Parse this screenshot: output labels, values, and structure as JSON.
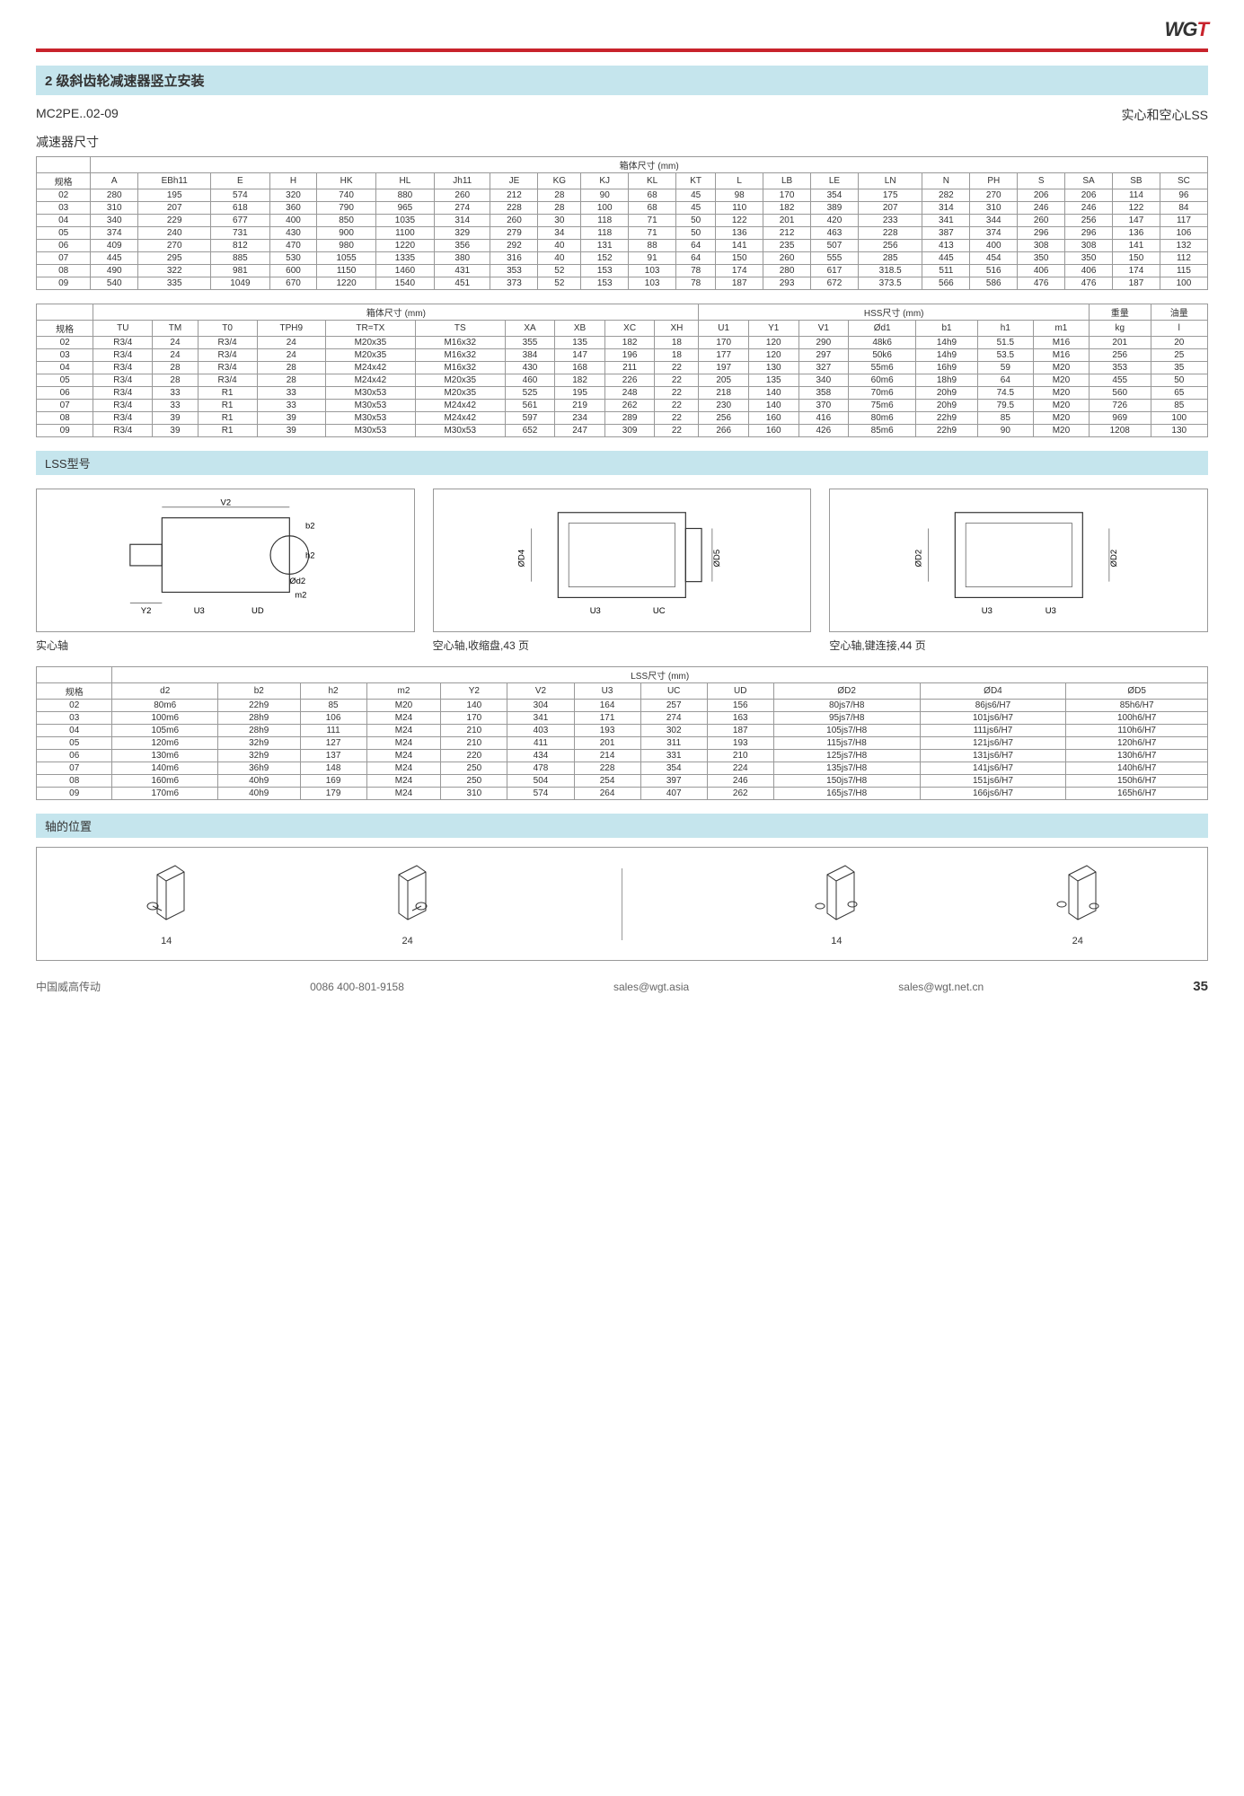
{
  "logo_black": "WG",
  "logo_red": "T",
  "title": "2 级斜齿轮减速器竖立安装",
  "model": "MC2PE..02-09",
  "subtitle_right": "实心和空心LSS",
  "section1_label": "减速器尺寸",
  "table1": {
    "header_span": "箱体尺寸 (mm)",
    "cols": [
      "规格",
      "A",
      "EBh11",
      "E",
      "H",
      "HK",
      "HL",
      "Jh11",
      "JE",
      "KG",
      "KJ",
      "KL",
      "KT",
      "L",
      "LB",
      "LE",
      "LN",
      "N",
      "PH",
      "S",
      "SA",
      "SB",
      "SC"
    ],
    "rows": [
      [
        "02",
        "280",
        "195",
        "574",
        "320",
        "740",
        "880",
        "260",
        "212",
        "28",
        "90",
        "68",
        "45",
        "98",
        "170",
        "354",
        "175",
        "282",
        "270",
        "206",
        "206",
        "114",
        "96"
      ],
      [
        "03",
        "310",
        "207",
        "618",
        "360",
        "790",
        "965",
        "274",
        "228",
        "28",
        "100",
        "68",
        "45",
        "110",
        "182",
        "389",
        "207",
        "314",
        "310",
        "246",
        "246",
        "122",
        "84"
      ],
      [
        "04",
        "340",
        "229",
        "677",
        "400",
        "850",
        "1035",
        "314",
        "260",
        "30",
        "118",
        "71",
        "50",
        "122",
        "201",
        "420",
        "233",
        "341",
        "344",
        "260",
        "256",
        "147",
        "117"
      ],
      [
        "05",
        "374",
        "240",
        "731",
        "430",
        "900",
        "1100",
        "329",
        "279",
        "34",
        "118",
        "71",
        "50",
        "136",
        "212",
        "463",
        "228",
        "387",
        "374",
        "296",
        "296",
        "136",
        "106"
      ],
      [
        "06",
        "409",
        "270",
        "812",
        "470",
        "980",
        "1220",
        "356",
        "292",
        "40",
        "131",
        "88",
        "64",
        "141",
        "235",
        "507",
        "256",
        "413",
        "400",
        "308",
        "308",
        "141",
        "132"
      ],
      [
        "07",
        "445",
        "295",
        "885",
        "530",
        "1055",
        "1335",
        "380",
        "316",
        "40",
        "152",
        "91",
        "64",
        "150",
        "260",
        "555",
        "285",
        "445",
        "454",
        "350",
        "350",
        "150",
        "112"
      ],
      [
        "08",
        "490",
        "322",
        "981",
        "600",
        "1150",
        "1460",
        "431",
        "353",
        "52",
        "153",
        "103",
        "78",
        "174",
        "280",
        "617",
        "318.5",
        "511",
        "516",
        "406",
        "406",
        "174",
        "115"
      ],
      [
        "09",
        "540",
        "335",
        "1049",
        "670",
        "1220",
        "1540",
        "451",
        "373",
        "52",
        "153",
        "103",
        "78",
        "187",
        "293",
        "672",
        "373.5",
        "566",
        "586",
        "476",
        "476",
        "187",
        "100"
      ]
    ]
  },
  "table2": {
    "header_left": "箱体尺寸 (mm)",
    "header_right": "HSS尺寸 (mm)",
    "header_weight": "重量",
    "header_oil": "油量",
    "cols": [
      "规格",
      "TU",
      "TM",
      "T0",
      "TPH9",
      "TR=TX",
      "TS",
      "XA",
      "XB",
      "XC",
      "XH",
      "U1",
      "Y1",
      "V1",
      "Ød1",
      "b1",
      "h1",
      "m1",
      "kg",
      "l"
    ],
    "rows": [
      [
        "02",
        "R3/4",
        "24",
        "R3/4",
        "24",
        "M20x35",
        "M16x32",
        "355",
        "135",
        "182",
        "18",
        "170",
        "120",
        "290",
        "48k6",
        "14h9",
        "51.5",
        "M16",
        "201",
        "20"
      ],
      [
        "03",
        "R3/4",
        "24",
        "R3/4",
        "24",
        "M20x35",
        "M16x32",
        "384",
        "147",
        "196",
        "18",
        "177",
        "120",
        "297",
        "50k6",
        "14h9",
        "53.5",
        "M16",
        "256",
        "25"
      ],
      [
        "04",
        "R3/4",
        "28",
        "R3/4",
        "28",
        "M24x42",
        "M16x32",
        "430",
        "168",
        "211",
        "22",
        "197",
        "130",
        "327",
        "55m6",
        "16h9",
        "59",
        "M20",
        "353",
        "35"
      ],
      [
        "05",
        "R3/4",
        "28",
        "R3/4",
        "28",
        "M24x42",
        "M20x35",
        "460",
        "182",
        "226",
        "22",
        "205",
        "135",
        "340",
        "60m6",
        "18h9",
        "64",
        "M20",
        "455",
        "50"
      ],
      [
        "06",
        "R3/4",
        "33",
        "R1",
        "33",
        "M30x53",
        "M20x35",
        "525",
        "195",
        "248",
        "22",
        "218",
        "140",
        "358",
        "70m6",
        "20h9",
        "74.5",
        "M20",
        "560",
        "65"
      ],
      [
        "07",
        "R3/4",
        "33",
        "R1",
        "33",
        "M30x53",
        "M24x42",
        "561",
        "219",
        "262",
        "22",
        "230",
        "140",
        "370",
        "75m6",
        "20h9",
        "79.5",
        "M20",
        "726",
        "85"
      ],
      [
        "08",
        "R3/4",
        "39",
        "R1",
        "39",
        "M30x53",
        "M24x42",
        "597",
        "234",
        "289",
        "22",
        "256",
        "160",
        "416",
        "80m6",
        "22h9",
        "85",
        "M20",
        "969",
        "100"
      ],
      [
        "09",
        "R3/4",
        "39",
        "R1",
        "39",
        "M30x53",
        "M30x53",
        "652",
        "247",
        "309",
        "22",
        "266",
        "160",
        "426",
        "85m6",
        "22h9",
        "90",
        "M20",
        "1208",
        "130"
      ]
    ]
  },
  "lss_section": "LSS型号",
  "diag1_caption": "实心轴",
  "diag2_caption": "空心轴,收缩盘,43 页",
  "diag3_caption": "空心轴,键连接,44 页",
  "table3": {
    "header_span": "LSS尺寸 (mm)",
    "cols": [
      "规格",
      "d2",
      "b2",
      "h2",
      "m2",
      "Y2",
      "V2",
      "U3",
      "UC",
      "UD",
      "ØD2",
      "ØD4",
      "ØD5"
    ],
    "rows": [
      [
        "02",
        "80m6",
        "22h9",
        "85",
        "M20",
        "140",
        "304",
        "164",
        "257",
        "156",
        "80js7/H8",
        "86js6/H7",
        "85h6/H7"
      ],
      [
        "03",
        "100m6",
        "28h9",
        "106",
        "M24",
        "170",
        "341",
        "171",
        "274",
        "163",
        "95js7/H8",
        "101js6/H7",
        "100h6/H7"
      ],
      [
        "04",
        "105m6",
        "28h9",
        "111",
        "M24",
        "210",
        "403",
        "193",
        "302",
        "187",
        "105js7/H8",
        "111js6/H7",
        "110h6/H7"
      ],
      [
        "05",
        "120m6",
        "32h9",
        "127",
        "M24",
        "210",
        "411",
        "201",
        "311",
        "193",
        "115js7/H8",
        "121js6/H7",
        "120h6/H7"
      ],
      [
        "06",
        "130m6",
        "32h9",
        "137",
        "M24",
        "220",
        "434",
        "214",
        "331",
        "210",
        "125js7/H8",
        "131js6/H7",
        "130h6/H7"
      ],
      [
        "07",
        "140m6",
        "36h9",
        "148",
        "M24",
        "250",
        "478",
        "228",
        "354",
        "224",
        "135js7/H8",
        "141js6/H7",
        "140h6/H7"
      ],
      [
        "08",
        "160m6",
        "40h9",
        "169",
        "M24",
        "250",
        "504",
        "254",
        "397",
        "246",
        "150js7/H8",
        "151js6/H7",
        "150h6/H7"
      ],
      [
        "09",
        "170m6",
        "40h9",
        "179",
        "M24",
        "310",
        "574",
        "264",
        "407",
        "262",
        "165js7/H8",
        "166js6/H7",
        "165h6/H7"
      ]
    ]
  },
  "shaft_section": "轴的位置",
  "shaft_labels": [
    "14",
    "24",
    "14",
    "24"
  ],
  "footer_company": "中国威高传动",
  "footer_phone": "0086 400-801-9158",
  "footer_email1": "sales@wgt.asia",
  "footer_email2": "sales@wgt.net.cn",
  "page_num": "35",
  "colors": {
    "header_bg": "#c5e5ed",
    "red": "#c8232c",
    "border": "#999999",
    "text": "#333333"
  }
}
